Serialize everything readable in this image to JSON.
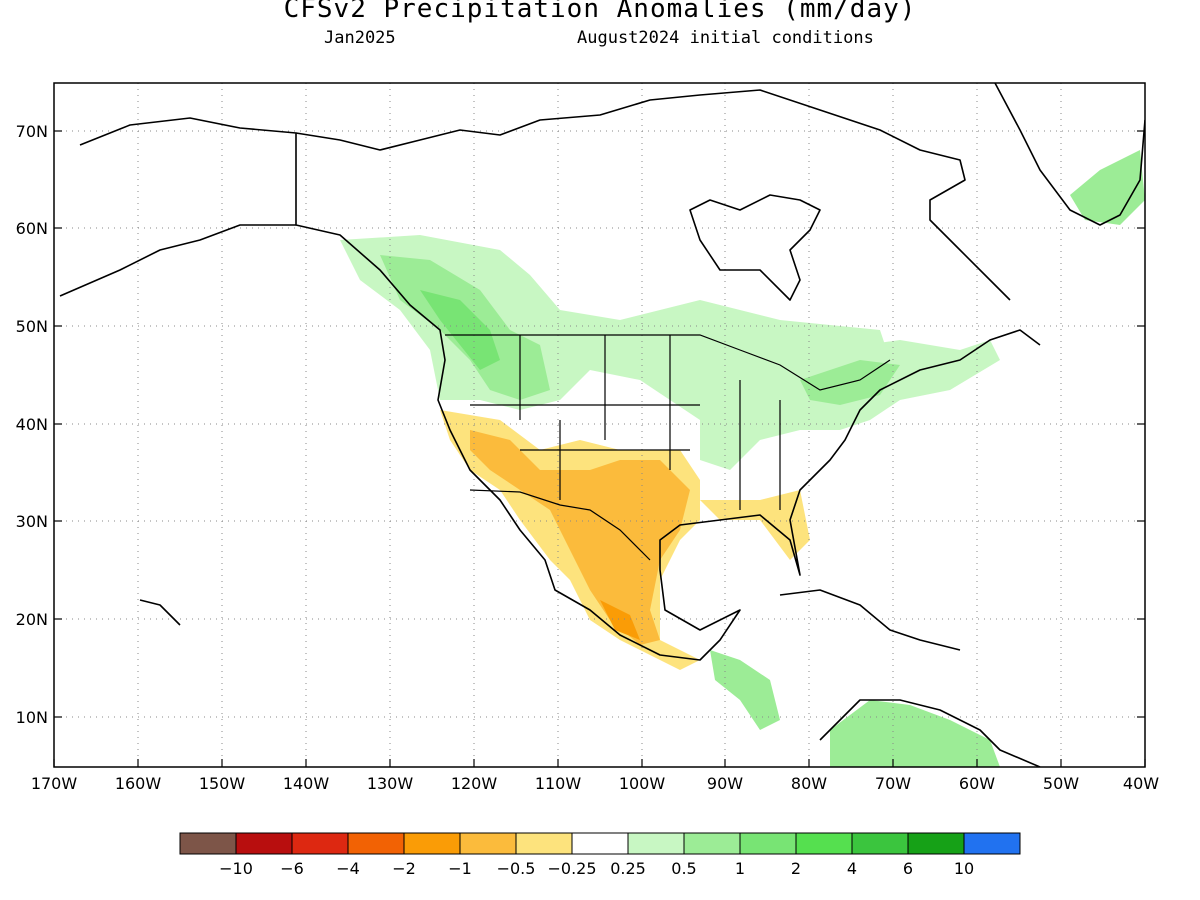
{
  "header": {
    "title": "CFSv2 Precipitation Anomalies (mm/day)",
    "valid_month": "Jan2025",
    "init_conditions": "August2024 initial conditions"
  },
  "map": {
    "lat_ticks": [
      "70N",
      "60N",
      "50N",
      "40N",
      "30N",
      "20N",
      "10N"
    ],
    "lon_ticks": [
      "170W",
      "160W",
      "150W",
      "140W",
      "130W",
      "120W",
      "110W",
      "100W",
      "90W",
      "80W",
      "70W",
      "60W",
      "50W",
      "40W"
    ],
    "extent": {
      "lon_min": -170,
      "lon_max": -40,
      "lat_min": 5,
      "lat_max": 75
    },
    "grid": "dotted"
  },
  "legend": {
    "colors": [
      "#7d5548",
      "#b80e0e",
      "#dd2811",
      "#f26204",
      "#fa9c06",
      "#fbbb3c",
      "#fde37d",
      "#ffffff",
      "#c8f7c3",
      "#9cec96",
      "#78e474",
      "#55e04f",
      "#3bc53e",
      "#16a117",
      "#2172f0"
    ],
    "labels": [
      "−10",
      "−6",
      "−4",
      "−2",
      "−1",
      "−0.5",
      "−0.25",
      "0.25",
      "0.5",
      "1",
      "2",
      "4",
      "6",
      "10"
    ]
  }
}
